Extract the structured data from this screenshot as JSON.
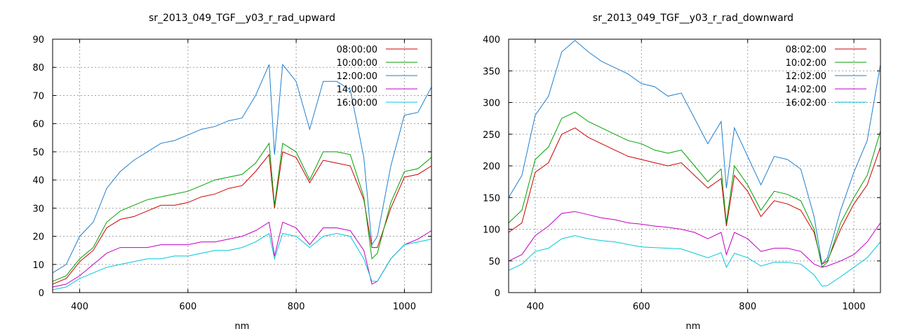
{
  "chart_data": [
    {
      "type": "line",
      "title": "sr_2013_049_TGF__y03_r_rad_upward",
      "xlabel": "nm",
      "ylabel": "",
      "xlim": [
        350,
        1050
      ],
      "ylim": [
        0,
        90
      ],
      "x_ticks": [
        400,
        600,
        800,
        1000
      ],
      "y_ticks": [
        0,
        10,
        20,
        30,
        40,
        50,
        60,
        70,
        80,
        90
      ],
      "grid": true,
      "legend_position": "top-right",
      "x": [
        350,
        375,
        400,
        425,
        450,
        475,
        500,
        525,
        550,
        575,
        600,
        625,
        650,
        675,
        700,
        725,
        750,
        760,
        775,
        800,
        825,
        850,
        875,
        900,
        925,
        940,
        950,
        975,
        1000,
        1025,
        1050
      ],
      "series": [
        {
          "name": "08:00:00",
          "color": "#cc0000",
          "values": [
            3,
            5,
            11,
            15,
            23,
            26,
            27,
            29,
            31,
            31,
            32,
            34,
            35,
            37,
            38,
            43,
            49,
            30,
            50,
            48,
            39,
            47,
            46,
            45,
            33,
            16,
            16,
            30,
            41,
            42,
            45
          ]
        },
        {
          "name": "10:00:00",
          "color": "#00a000",
          "values": [
            4,
            6,
            12,
            16,
            25,
            29,
            31,
            33,
            34,
            35,
            36,
            38,
            40,
            41,
            42,
            46,
            53,
            31,
            53,
            50,
            40,
            50,
            50,
            49,
            34,
            12,
            14,
            32,
            43,
            44,
            48
          ]
        },
        {
          "name": "12:00:00",
          "color": "#1e7fcf",
          "values": [
            7,
            10,
            20,
            25,
            37,
            43,
            47,
            50,
            53,
            54,
            56,
            58,
            59,
            61,
            62,
            70,
            81,
            49,
            81,
            75,
            58,
            75,
            75,
            72,
            48,
            17,
            20,
            45,
            63,
            64,
            73
          ]
        },
        {
          "name": "14:00:00",
          "color": "#c000c0",
          "values": [
            2,
            3,
            6,
            10,
            14,
            16,
            16,
            16,
            17,
            17,
            17,
            18,
            18,
            19,
            20,
            22,
            25,
            13,
            25,
            23,
            17,
            23,
            23,
            22,
            15,
            3,
            4,
            12,
            17,
            19,
            22
          ]
        },
        {
          "name": "16:00:00",
          "color": "#00c8d8",
          "values": [
            1,
            2,
            5,
            7,
            9,
            10,
            11,
            12,
            12,
            13,
            13,
            14,
            15,
            15,
            16,
            18,
            21,
            12,
            21,
            20,
            16,
            20,
            21,
            20,
            12,
            4,
            4,
            12,
            17,
            18,
            19
          ]
        }
      ]
    },
    {
      "type": "line",
      "title": "sr_2013_049_TGF__y03_r_rad_downward",
      "xlabel": "nm",
      "ylabel": "",
      "xlim": [
        350,
        1050
      ],
      "ylim": [
        0,
        400
      ],
      "x_ticks": [
        400,
        600,
        800,
        1000
      ],
      "y_ticks": [
        0,
        50,
        100,
        150,
        200,
        250,
        300,
        350,
        400
      ],
      "grid": true,
      "legend_position": "top-right",
      "x": [
        350,
        375,
        400,
        425,
        450,
        475,
        500,
        525,
        550,
        575,
        600,
        625,
        650,
        675,
        700,
        725,
        750,
        760,
        775,
        800,
        825,
        850,
        875,
        900,
        925,
        940,
        950,
        975,
        1000,
        1025,
        1050
      ],
      "series": [
        {
          "name": "08:02:00",
          "color": "#cc0000",
          "values": [
            95,
            110,
            190,
            205,
            250,
            260,
            245,
            235,
            225,
            215,
            210,
            205,
            200,
            205,
            185,
            165,
            180,
            105,
            185,
            160,
            120,
            145,
            140,
            130,
            95,
            45,
            50,
            100,
            140,
            170,
            230
          ]
        },
        {
          "name": "10:02:00",
          "color": "#00a000",
          "values": [
            110,
            130,
            210,
            230,
            275,
            285,
            270,
            260,
            250,
            240,
            235,
            225,
            220,
            225,
            200,
            175,
            195,
            110,
            200,
            170,
            130,
            160,
            155,
            145,
            100,
            40,
            48,
            110,
            150,
            185,
            255
          ]
        },
        {
          "name": "12:02:00",
          "color": "#1e7fcf",
          "values": [
            150,
            185,
            280,
            310,
            380,
            398,
            380,
            365,
            355,
            345,
            330,
            325,
            310,
            315,
            275,
            235,
            270,
            165,
            260,
            215,
            170,
            215,
            210,
            195,
            120,
            45,
            55,
            130,
            190,
            240,
            360
          ]
        },
        {
          "name": "14:02:00",
          "color": "#c000c0",
          "values": [
            50,
            60,
            90,
            105,
            125,
            128,
            123,
            118,
            115,
            110,
            108,
            105,
            103,
            100,
            95,
            85,
            95,
            60,
            95,
            85,
            65,
            70,
            70,
            65,
            45,
            40,
            42,
            50,
            60,
            80,
            110
          ]
        },
        {
          "name": "16:02:00",
          "color": "#00c8d8",
          "values": [
            35,
            45,
            65,
            70,
            85,
            90,
            85,
            82,
            80,
            76,
            72,
            71,
            70,
            69,
            62,
            55,
            63,
            40,
            62,
            55,
            42,
            48,
            48,
            45,
            28,
            10,
            11,
            25,
            40,
            55,
            80
          ]
        }
      ]
    }
  ]
}
